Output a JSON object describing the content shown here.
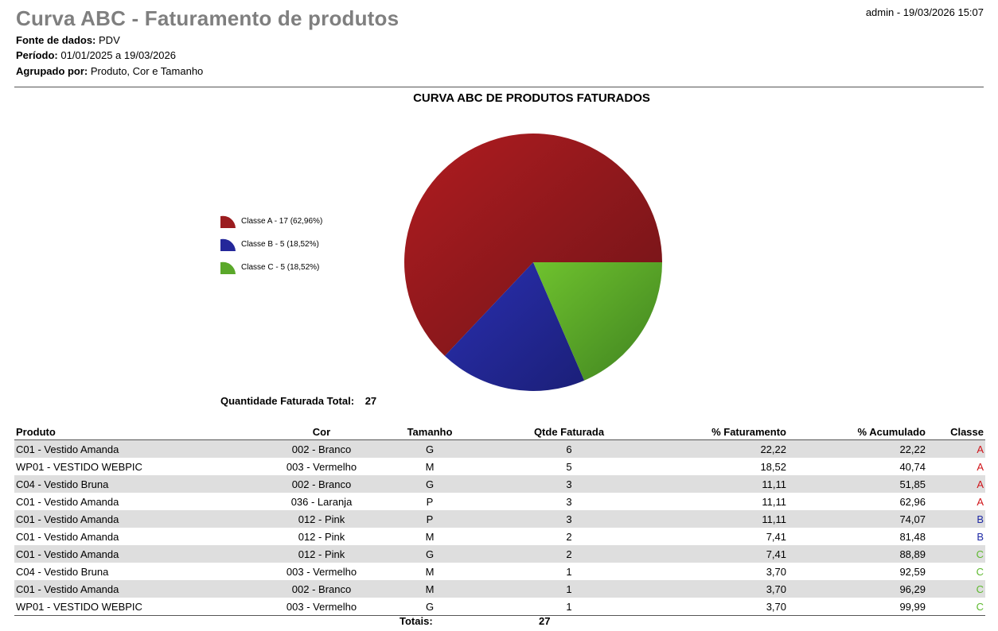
{
  "header": {
    "title": "Curva ABC - Faturamento de produtos",
    "user_stamp": "admin - 19/03/2026 15:07",
    "source_label": "Fonte de dados:",
    "source_value": "PDV",
    "period_label": "Período:",
    "period_value": "01/01/2025 a 19/03/2026",
    "group_label": "Agrupado por:",
    "group_value": "Produto, Cor e Tamanho"
  },
  "chart_data": {
    "type": "pie",
    "title": "CURVA ABC DE PRODUTOS FATURADOS",
    "slices": [
      {
        "label": "Classe A - 17 (62,96%)",
        "value": 17,
        "percent": 62.96,
        "color": "#9b1c1f"
      },
      {
        "label": "Classe B - 5 (18,52%)",
        "value": 5,
        "percent": 18.52,
        "color": "#24279a"
      },
      {
        "label": "Classe C - 5 (18,52%)",
        "value": 5,
        "percent": 18.52,
        "color": "#5aa82a"
      }
    ],
    "legend_position": "left"
  },
  "summary": {
    "total_label": "Quantidade Faturada Total:",
    "total_value": "27"
  },
  "table": {
    "columns": [
      "Produto",
      "Cor",
      "Tamanho",
      "Qtde Faturada",
      "% Faturamento",
      "% Acumulado",
      "Classe"
    ],
    "rows": [
      [
        "C01 - Vestido Amanda",
        "002 - Branco",
        "G",
        "6",
        "22,22",
        "22,22",
        "A"
      ],
      [
        "WP01 - VESTIDO WEBPIC",
        "003 - Vermelho",
        "M",
        "5",
        "18,52",
        "40,74",
        "A"
      ],
      [
        "C04 - Vestido Bruna",
        "002 - Branco",
        "G",
        "3",
        "11,11",
        "51,85",
        "A"
      ],
      [
        "C01 - Vestido Amanda",
        "036 - Laranja",
        "P",
        "3",
        "11,11",
        "62,96",
        "A"
      ],
      [
        "C01 - Vestido Amanda",
        "012 - Pink",
        "P",
        "3",
        "11,11",
        "74,07",
        "B"
      ],
      [
        "C01 - Vestido Amanda",
        "012 - Pink",
        "M",
        "2",
        "7,41",
        "81,48",
        "B"
      ],
      [
        "C01 - Vestido Amanda",
        "012 - Pink",
        "G",
        "2",
        "7,41",
        "88,89",
        "C"
      ],
      [
        "C04 - Vestido Bruna",
        "003 - Vermelho",
        "M",
        "1",
        "3,70",
        "92,59",
        "C"
      ],
      [
        "C01 - Vestido Amanda",
        "002 - Branco",
        "M",
        "1",
        "3,70",
        "96,29",
        "C"
      ],
      [
        "WP01 - VESTIDO WEBPIC",
        "003 - Vermelho",
        "G",
        "1",
        "3,70",
        "99,99",
        "C"
      ]
    ],
    "class_colors": {
      "A": "#d0141a",
      "B": "#1f2aa5",
      "C": "#5cb82d"
    },
    "totals_label": "Totais:",
    "totals_qty": "27"
  }
}
